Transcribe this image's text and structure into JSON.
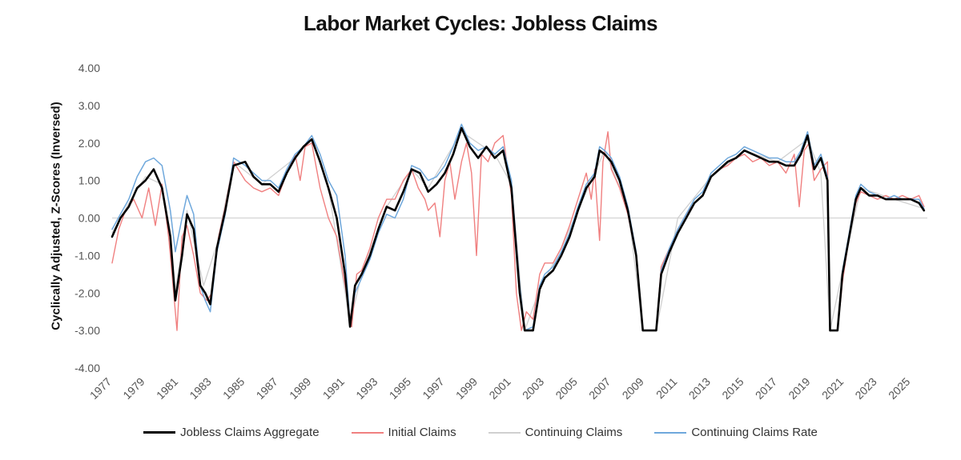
{
  "chart_data": {
    "type": "line",
    "title": "Labor Market Cycles: Jobless Claims",
    "xlabel": "",
    "ylabel": "Cyclically Adjusted, Z-Scores (Inversed)",
    "xlim": [
      1977,
      2026
    ],
    "ylim": [
      -4,
      4
    ],
    "yticks": [
      4,
      3,
      2,
      1,
      0,
      -1,
      -2,
      -3,
      -4
    ],
    "ytick_labels": [
      "4.00",
      "3.00",
      "2.00",
      "1.00",
      "0.00",
      "-1.00",
      "-2.00",
      "-3.00",
      "-4.00"
    ],
    "xticks": [
      1977,
      1979,
      1981,
      1983,
      1985,
      1987,
      1989,
      1991,
      1993,
      1995,
      1997,
      1999,
      2001,
      2003,
      2005,
      2007,
      2009,
      2011,
      2013,
      2015,
      2017,
      2019,
      2021,
      2023,
      2025
    ],
    "xtick_labels": [
      "1977",
      "1979",
      "1981",
      "1983",
      "1985",
      "1987",
      "1989",
      "1991",
      "1993",
      "1995",
      "1997",
      "1999",
      "2001",
      "2003",
      "2005",
      "2007",
      "2009",
      "2011",
      "2013",
      "2015",
      "2017",
      "2019",
      "2021",
      "2023",
      "2025"
    ],
    "legend_position": "bottom",
    "series": [
      {
        "name": "Jobless Claims Aggregate",
        "color": "#000000",
        "x": [
          1977.0,
          1977.5,
          1978.0,
          1978.5,
          1979.0,
          1979.5,
          1980.0,
          1980.5,
          1980.8,
          1981.2,
          1981.5,
          1981.9,
          1982.3,
          1982.6,
          1982.9,
          1983.3,
          1983.8,
          1984.3,
          1985.0,
          1985.5,
          1986.0,
          1986.5,
          1987.0,
          1987.5,
          1988.0,
          1988.5,
          1989.0,
          1989.5,
          1990.0,
          1990.5,
          1991.0,
          1991.3,
          1991.6,
          1992.0,
          1992.5,
          1993.0,
          1993.5,
          1994.0,
          1994.5,
          1995.0,
          1995.5,
          1996.0,
          1996.5,
          1997.0,
          1997.5,
          1998.0,
          1998.5,
          1999.0,
          1999.5,
          2000.0,
          2000.5,
          2001.0,
          2001.5,
          2001.8,
          2002.3,
          2002.7,
          2003.0,
          2003.5,
          2004.0,
          2004.5,
          2005.0,
          2005.5,
          2006.0,
          2006.3,
          2006.6,
          2007.0,
          2007.5,
          2008.0,
          2008.5,
          2008.9,
          2009.3,
          2009.7,
          2010.0,
          2010.5,
          2011.0,
          2011.5,
          2012.0,
          2012.5,
          2013.0,
          2013.5,
          2014.0,
          2014.5,
          2015.0,
          2015.5,
          2016.0,
          2016.5,
          2017.0,
          2017.5,
          2018.0,
          2018.4,
          2018.8,
          2019.2,
          2019.6,
          2020.0,
          2020.15,
          2020.3,
          2020.6,
          2020.9,
          2021.3,
          2021.7,
          2022.0,
          2022.5,
          2023.0,
          2023.5,
          2024.0,
          2024.5,
          2025.0,
          2025.5,
          2025.8
        ],
        "y": [
          -0.5,
          0.0,
          0.3,
          0.8,
          1.0,
          1.3,
          0.8,
          -0.5,
          -2.2,
          -1.0,
          0.1,
          -0.3,
          -1.8,
          -2.0,
          -2.3,
          -0.8,
          0.2,
          1.4,
          1.5,
          1.1,
          0.9,
          0.9,
          0.7,
          1.2,
          1.6,
          1.9,
          2.1,
          1.5,
          0.8,
          0.0,
          -1.5,
          -2.9,
          -1.8,
          -1.5,
          -1.0,
          -0.3,
          0.3,
          0.2,
          0.7,
          1.3,
          1.2,
          0.7,
          0.9,
          1.2,
          1.7,
          2.4,
          1.9,
          1.6,
          1.9,
          1.6,
          1.8,
          0.8,
          -2.0,
          -3.0,
          -3.0,
          -1.9,
          -1.6,
          -1.4,
          -1.0,
          -0.5,
          0.2,
          0.8,
          1.1,
          1.8,
          1.7,
          1.5,
          1.0,
          0.2,
          -1.0,
          -3.0,
          -3.0,
          -3.0,
          -1.5,
          -0.9,
          -0.4,
          0.0,
          0.4,
          0.6,
          1.1,
          1.3,
          1.5,
          1.6,
          1.8,
          1.7,
          1.6,
          1.5,
          1.5,
          1.4,
          1.4,
          1.7,
          2.2,
          1.3,
          1.6,
          1.0,
          -3.0,
          -3.0,
          -3.0,
          -1.5,
          -0.5,
          0.5,
          0.8,
          0.6,
          0.6,
          0.5,
          0.5,
          0.5,
          0.5,
          0.4,
          0.2
        ]
      },
      {
        "name": "Initial Claims",
        "color": "#f08080",
        "x": [
          1977.0,
          1977.4,
          1977.8,
          1978.3,
          1978.8,
          1979.2,
          1979.6,
          1980.0,
          1980.4,
          1980.7,
          1980.9,
          1981.2,
          1981.5,
          1981.9,
          1982.3,
          1982.7,
          1983.0,
          1983.4,
          1983.8,
          1984.3,
          1985.0,
          1985.5,
          1986.0,
          1986.5,
          1987.0,
          1987.5,
          1988.0,
          1988.3,
          1988.6,
          1989.0,
          1989.5,
          1990.0,
          1990.5,
          1991.0,
          1991.4,
          1991.7,
          1992.0,
          1992.5,
          1993.0,
          1993.5,
          1994.0,
          1994.5,
          1995.0,
          1995.4,
          1995.8,
          1996.0,
          1996.4,
          1996.7,
          1997.0,
          1997.3,
          1997.6,
          1998.0,
          1998.3,
          1998.6,
          1998.9,
          1999.2,
          1999.6,
          2000.0,
          2000.5,
          2001.0,
          2001.3,
          2001.6,
          2001.9,
          2002.3,
          2002.7,
          2003.0,
          2003.5,
          2004.0,
          2004.5,
          2005.0,
          2005.5,
          2005.8,
          2006.0,
          2006.3,
          2006.5,
          2006.8,
          2007.0,
          2007.5,
          2008.0,
          2008.5,
          2008.9,
          2009.3,
          2009.7,
          2010.0,
          2010.5,
          2011.0,
          2011.5,
          2012.0,
          2012.5,
          2013.0,
          2013.5,
          2014.0,
          2014.5,
          2015.0,
          2015.5,
          2016.0,
          2016.5,
          2017.0,
          2017.5,
          2018.0,
          2018.3,
          2018.6,
          2018.9,
          2019.2,
          2019.6,
          2020.0,
          2020.15,
          2020.3,
          2020.6,
          2020.9,
          2021.3,
          2021.7,
          2022.0,
          2022.5,
          2023.0,
          2023.5,
          2024.0,
          2024.5,
          2025.0,
          2025.5,
          2025.8
        ],
        "y": [
          -1.2,
          -0.3,
          0.2,
          0.5,
          0.0,
          0.8,
          -0.2,
          0.9,
          -0.5,
          -2.0,
          -3.0,
          -0.5,
          -0.2,
          -1.0,
          -2.0,
          -2.2,
          -2.0,
          -0.5,
          0.3,
          1.5,
          1.0,
          0.8,
          0.7,
          0.8,
          0.6,
          1.2,
          1.7,
          1.0,
          1.9,
          2.0,
          0.8,
          0.0,
          -0.5,
          -1.8,
          -2.9,
          -1.5,
          -1.4,
          -0.8,
          0.0,
          0.5,
          0.5,
          1.0,
          1.3,
          0.8,
          0.5,
          0.2,
          0.4,
          -0.5,
          1.0,
          1.5,
          0.5,
          1.5,
          2.0,
          1.2,
          -1.0,
          1.7,
          1.5,
          2.0,
          2.2,
          0.6,
          -2.0,
          -3.0,
          -2.5,
          -2.7,
          -1.5,
          -1.2,
          -1.2,
          -0.8,
          -0.2,
          0.5,
          1.2,
          0.5,
          1.3,
          -0.6,
          1.5,
          2.3,
          1.3,
          0.8,
          0.1,
          -1.0,
          -3.0,
          -3.0,
          -3.0,
          -1.3,
          -0.8,
          -0.3,
          0.1,
          0.4,
          0.6,
          1.1,
          1.3,
          1.4,
          1.6,
          1.7,
          1.5,
          1.6,
          1.4,
          1.5,
          1.2,
          1.7,
          0.3,
          1.8,
          2.0,
          1.0,
          1.3,
          1.5,
          -3.0,
          -3.0,
          -3.0,
          -1.7,
          -0.5,
          0.4,
          0.7,
          0.6,
          0.5,
          0.6,
          0.5,
          0.6,
          0.5,
          0.6,
          0.3
        ]
      },
      {
        "name": "Continuing Claims",
        "color": "#d0d0d0",
        "x": [
          1977.0,
          1978.0,
          1979.0,
          1980.0,
          1980.8,
          1981.5,
          1982.5,
          1983.3,
          1984.3,
          1986.0,
          1988.0,
          1989.0,
          1990.0,
          1991.3,
          1992.0,
          1993.5,
          1995.0,
          1996.0,
          1998.0,
          2000.0,
          2001.0,
          2001.8,
          2002.7,
          2004.0,
          2006.0,
          2006.6,
          2008.0,
          2008.9,
          2009.7,
          2011.0,
          2013.0,
          2015.0,
          2017.0,
          2018.8,
          2019.6,
          2020.15,
          2020.9,
          2022.0,
          2024.0,
          2025.8
        ],
        "y": [
          -0.4,
          0.4,
          1.1,
          0.9,
          -2.0,
          0.2,
          -1.8,
          -0.7,
          1.5,
          0.9,
          1.6,
          2.1,
          0.8,
          -2.8,
          -1.5,
          0.3,
          1.3,
          0.8,
          2.3,
          1.7,
          0.9,
          -3.0,
          -1.9,
          -0.8,
          1.2,
          1.8,
          0.3,
          -3.0,
          -3.0,
          0.0,
          1.1,
          1.8,
          1.5,
          2.1,
          1.2,
          -3.0,
          -1.4,
          0.8,
          0.5,
          0.25
        ]
      },
      {
        "name": "Continuing Claims Rate",
        "color": "#6fa8dc",
        "x": [
          1977.0,
          1977.5,
          1978.0,
          1978.5,
          1979.0,
          1979.5,
          1980.0,
          1980.5,
          1980.8,
          1981.2,
          1981.5,
          1981.9,
          1982.3,
          1982.6,
          1982.9,
          1983.3,
          1983.8,
          1984.3,
          1985.0,
          1985.5,
          1986.0,
          1986.5,
          1987.0,
          1987.5,
          1988.0,
          1988.5,
          1989.0,
          1989.5,
          1990.0,
          1990.5,
          1991.0,
          1991.3,
          1991.6,
          1992.0,
          1992.5,
          1993.0,
          1993.5,
          1994.0,
          1994.5,
          1995.0,
          1995.5,
          1996.0,
          1996.5,
          1997.0,
          1997.5,
          1998.0,
          1998.5,
          1999.0,
          1999.5,
          2000.0,
          2000.5,
          2001.0,
          2001.5,
          2001.8,
          2002.3,
          2002.7,
          2003.0,
          2003.5,
          2004.0,
          2004.5,
          2005.0,
          2005.5,
          2006.0,
          2006.3,
          2006.6,
          2007.0,
          2007.5,
          2008.0,
          2008.5,
          2008.9,
          2009.3,
          2009.7,
          2010.0,
          2010.5,
          2011.0,
          2011.5,
          2012.0,
          2012.5,
          2013.0,
          2013.5,
          2014.0,
          2014.5,
          2015.0,
          2015.5,
          2016.0,
          2016.5,
          2017.0,
          2017.5,
          2018.0,
          2018.4,
          2018.8,
          2019.2,
          2019.6,
          2020.0,
          2020.15,
          2020.3,
          2020.6,
          2020.9,
          2021.3,
          2021.7,
          2022.0,
          2022.5,
          2023.0,
          2023.5,
          2024.0,
          2024.5,
          2025.0,
          2025.5,
          2025.8
        ],
        "y": [
          -0.3,
          0.1,
          0.5,
          1.1,
          1.5,
          1.6,
          1.4,
          0.2,
          -0.9,
          0.0,
          0.6,
          0.1,
          -1.8,
          -2.2,
          -2.5,
          -0.9,
          0.1,
          1.6,
          1.4,
          1.2,
          1.0,
          1.0,
          0.8,
          1.3,
          1.7,
          1.9,
          2.2,
          1.7,
          1.0,
          0.6,
          -1.0,
          -2.8,
          -2.0,
          -1.6,
          -1.1,
          -0.4,
          0.1,
          0.0,
          0.5,
          1.4,
          1.3,
          1.0,
          1.1,
          1.4,
          1.9,
          2.5,
          2.0,
          1.8,
          1.9,
          1.7,
          1.9,
          1.0,
          -1.8,
          -3.0,
          -2.9,
          -1.8,
          -1.5,
          -1.3,
          -0.9,
          -0.4,
          0.3,
          0.9,
          1.2,
          1.9,
          1.8,
          1.6,
          1.1,
          0.3,
          -0.9,
          -3.0,
          -3.0,
          -3.0,
          -1.4,
          -0.8,
          -0.3,
          0.1,
          0.5,
          0.7,
          1.2,
          1.4,
          1.6,
          1.7,
          1.9,
          1.8,
          1.7,
          1.6,
          1.6,
          1.5,
          1.5,
          1.8,
          2.3,
          1.4,
          1.7,
          1.1,
          -3.0,
          -3.0,
          -3.0,
          -1.4,
          -0.4,
          0.6,
          0.9,
          0.7,
          0.6,
          0.5,
          0.6,
          0.5,
          0.5,
          0.5,
          0.25
        ]
      }
    ]
  }
}
